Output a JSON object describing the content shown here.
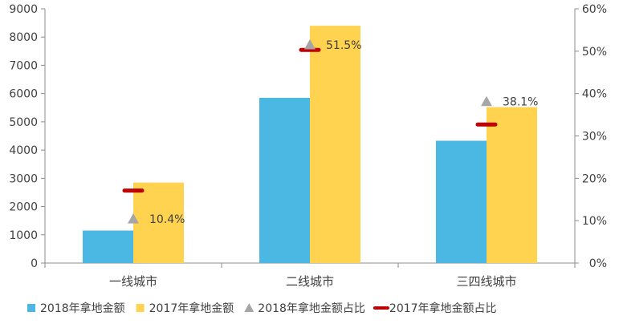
{
  "chart_data": {
    "type": "bar",
    "categories": [
      "一线城市",
      "二线城市",
      "三四线城市"
    ],
    "series": [
      {
        "name": "2018年拿地金额",
        "kind": "bar",
        "axis": "left",
        "color": "#4BB8E3",
        "values": [
          1150,
          5850,
          4330
        ]
      },
      {
        "name": "2017年拿地金额",
        "kind": "bar",
        "axis": "left",
        "color": "#FFD24F",
        "values": [
          2850,
          8400,
          5520
        ]
      },
      {
        "name": "2018年拿地金额占比",
        "kind": "marker-triangle",
        "axis": "right",
        "color": "#A6A6A6",
        "values": [
          10.4,
          51.5,
          38.1
        ],
        "labels": [
          "10.4%",
          "51.5%",
          "38.1%"
        ]
      },
      {
        "name": "2017年拿地金额占比",
        "kind": "marker-dash",
        "axis": "right",
        "color": "#C00000",
        "values": [
          17.1,
          50.3,
          32.7
        ]
      }
    ],
    "y_left": {
      "min": 0,
      "max": 9000,
      "step": 1000,
      "ticks": [
        "0",
        "1000",
        "2000",
        "3000",
        "4000",
        "5000",
        "6000",
        "7000",
        "8000",
        "9000"
      ]
    },
    "y_right": {
      "min": 0,
      "max": 60,
      "step": 10,
      "ticks": [
        "0%",
        "10%",
        "20%",
        "30%",
        "40%",
        "50%",
        "60%"
      ]
    },
    "grid": false,
    "legend": "bottom",
    "xlabel": "",
    "ylabel": ""
  }
}
